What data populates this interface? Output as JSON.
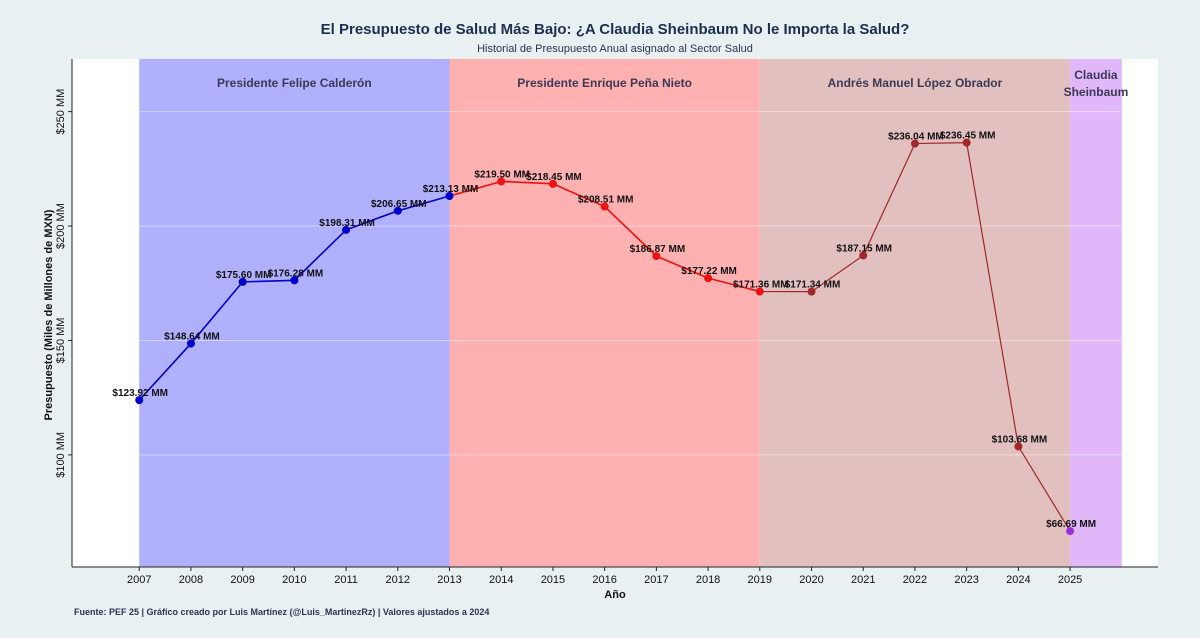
{
  "chart_data": {
    "type": "line",
    "title": "El Presupuesto de Salud Más Bajo: ¿A Claudia Sheinbaum No le Importa la Salud?",
    "subtitle": "Historial de Presupuesto Anual asignado al Sector Salud",
    "caption": "Fuente: PEF 25 | Gráfico creado por Luis Martínez (@Luis_MartinezRz) | Valores ajustados a 2024",
    "xlabel": "Año",
    "ylabel": "Presupuesto (Miles de Millones de MXN)",
    "xlim": [
      2005.7,
      2026.7
    ],
    "ylim": [
      51,
      273
    ],
    "yticks": [
      100,
      150,
      200,
      250
    ],
    "ytick_labels": [
      "$100 MM",
      "$150 MM",
      "$200 MM",
      "$250 MM"
    ],
    "xticks": [
      2007,
      2008,
      2009,
      2010,
      2011,
      2012,
      2013,
      2014,
      2015,
      2016,
      2017,
      2018,
      2019,
      2020,
      2021,
      2022,
      2023,
      2024,
      2025
    ],
    "periods": [
      {
        "name": "Presidente Felipe Calderón",
        "start": 2007,
        "end": 2013,
        "color": "#b0b0ff"
      },
      {
        "name": "Presidente Enrique Peña Nieto",
        "start": 2013,
        "end": 2019,
        "color": "#ffb0b0"
      },
      {
        "name": "Andrés Manuel López Obrador",
        "start": 2019,
        "end": 2025,
        "color": "#e2c0c0"
      },
      {
        "name": "Claudia\nSheinbaum",
        "start": 2025,
        "end": 2026,
        "color": "#e0b8fa"
      }
    ],
    "series": [
      {
        "name": "Felipe Calderón",
        "color": "#0000cc",
        "x": [
          2007,
          2008,
          2009,
          2010,
          2011,
          2012,
          2013
        ],
        "values": [
          123.92,
          148.64,
          175.6,
          176.28,
          198.31,
          206.65,
          213.13
        ],
        "labels": [
          "$123.92 MM",
          "$148.64 MM",
          "$175.60 MM",
          "$176.28 MM",
          "$198.31 MM",
          "$206.65 MM",
          "$213.13 MM"
        ]
      },
      {
        "name": "Enrique Peña Nieto",
        "color": "#ee1111",
        "x": [
          2013,
          2014,
          2015,
          2016,
          2017,
          2018,
          2019
        ],
        "values": [
          213.13,
          219.5,
          218.45,
          208.51,
          186.87,
          177.22,
          171.36
        ],
        "labels": [
          "",
          "$219.50 MM",
          "$218.45 MM",
          "$208.51 MM",
          "$186.87 MM",
          "$177.22 MM",
          "$171.36 MM"
        ]
      },
      {
        "name": "Andrés Manuel López Obrador",
        "color": "#a0282a",
        "x": [
          2019,
          2020,
          2021,
          2022,
          2023,
          2024
        ],
        "values": [
          171.36,
          171.34,
          187.15,
          236.04,
          236.45,
          103.68
        ],
        "labels": [
          "",
          "$171.34 MM",
          "$187.15 MM",
          "$236.04 MM",
          "$236.45 MM",
          "$103.68 MM"
        ]
      },
      {
        "name": "Claudia Sheinbaum",
        "color": "#a0282a",
        "x": [
          2024,
          2025
        ],
        "values": [
          103.68,
          66.69
        ],
        "labels": [
          "",
          "$66.69 MM"
        ],
        "last_point_color": "#9a30d8"
      }
    ]
  }
}
